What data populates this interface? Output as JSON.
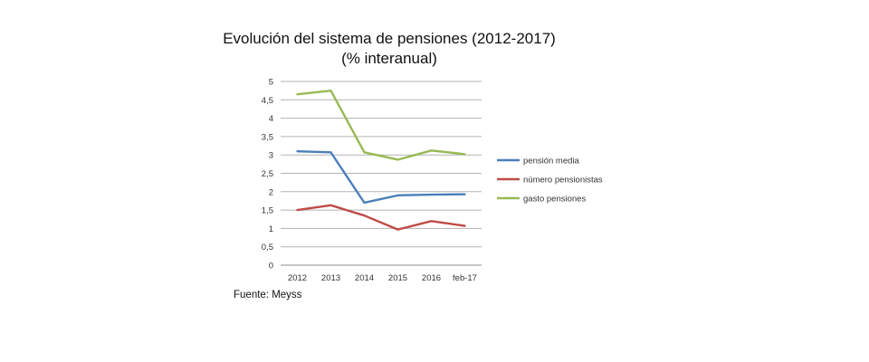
{
  "chart_data": {
    "type": "line",
    "title_lines": [
      "Evolución del sistema de pensiones (2012-2017)",
      "(% interanual)"
    ],
    "categories": [
      "2012",
      "2013",
      "2014",
      "2015",
      "2016",
      "feb-17"
    ],
    "yticks": [
      "0",
      "0,5",
      "1",
      "1,5",
      "2",
      "2,5",
      "3",
      "3,5",
      "4",
      "4,5",
      "5"
    ],
    "ylim": [
      0,
      5
    ],
    "grid": true,
    "legend_position": "right",
    "series": [
      {
        "name": "pensión media",
        "color": "#4a7ebb",
        "values": [
          3.1,
          3.07,
          1.7,
          1.9,
          1.92,
          1.93
        ]
      },
      {
        "name": "número pensionistas",
        "color": "#be4b48",
        "values": [
          1.5,
          1.63,
          1.35,
          0.97,
          1.2,
          1.07
        ]
      },
      {
        "name": "gasto pensiones",
        "color": "#98b954",
        "values": [
          4.65,
          4.75,
          3.07,
          2.87,
          3.12,
          3.02
        ]
      }
    ],
    "source": "Fuente: Meyss"
  }
}
